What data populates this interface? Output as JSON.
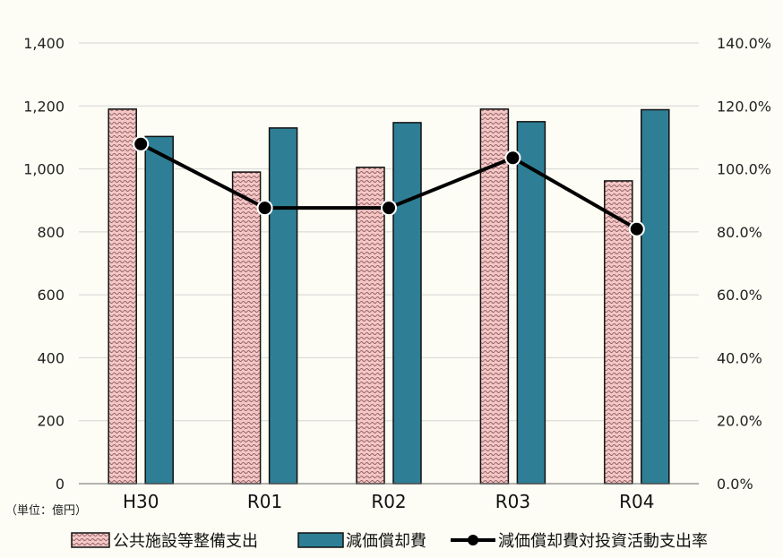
{
  "chart_data": {
    "type": "bar",
    "categories": [
      "H30",
      "R01",
      "R02",
      "R03",
      "R04"
    ],
    "series": [
      {
        "name": "公共施設等整備支出",
        "type": "bar",
        "axis": "left",
        "color": "#F4C6C6",
        "pattern": "wavy",
        "values": [
          1190,
          990,
          1005,
          1190,
          962
        ]
      },
      {
        "name": "減価償却費",
        "type": "bar",
        "axis": "left",
        "color": "#2E7F96",
        "values": [
          1103,
          1130,
          1147,
          1150,
          1188
        ]
      },
      {
        "name": "減価償却費対投資活動支出率",
        "type": "line",
        "axis": "right",
        "color": "#000000",
        "marker": "circle",
        "values": [
          107.9,
          87.6,
          87.6,
          103.5,
          80.9
        ]
      }
    ],
    "y_left": {
      "ylim": [
        0,
        1400
      ],
      "ticks": [
        "0",
        "200",
        "400",
        "600",
        "800",
        "1,000",
        "1,200",
        "1,400"
      ],
      "unit_label": "（単位：億円）"
    },
    "y_right": {
      "ylim": [
        0,
        140
      ],
      "ticks": [
        "0.0%",
        "20.0%",
        "40.0%",
        "60.0%",
        "80.0%",
        "100.0%",
        "120.0%",
        "140.0%"
      ]
    },
    "grid": true,
    "legend_position": "bottom"
  }
}
